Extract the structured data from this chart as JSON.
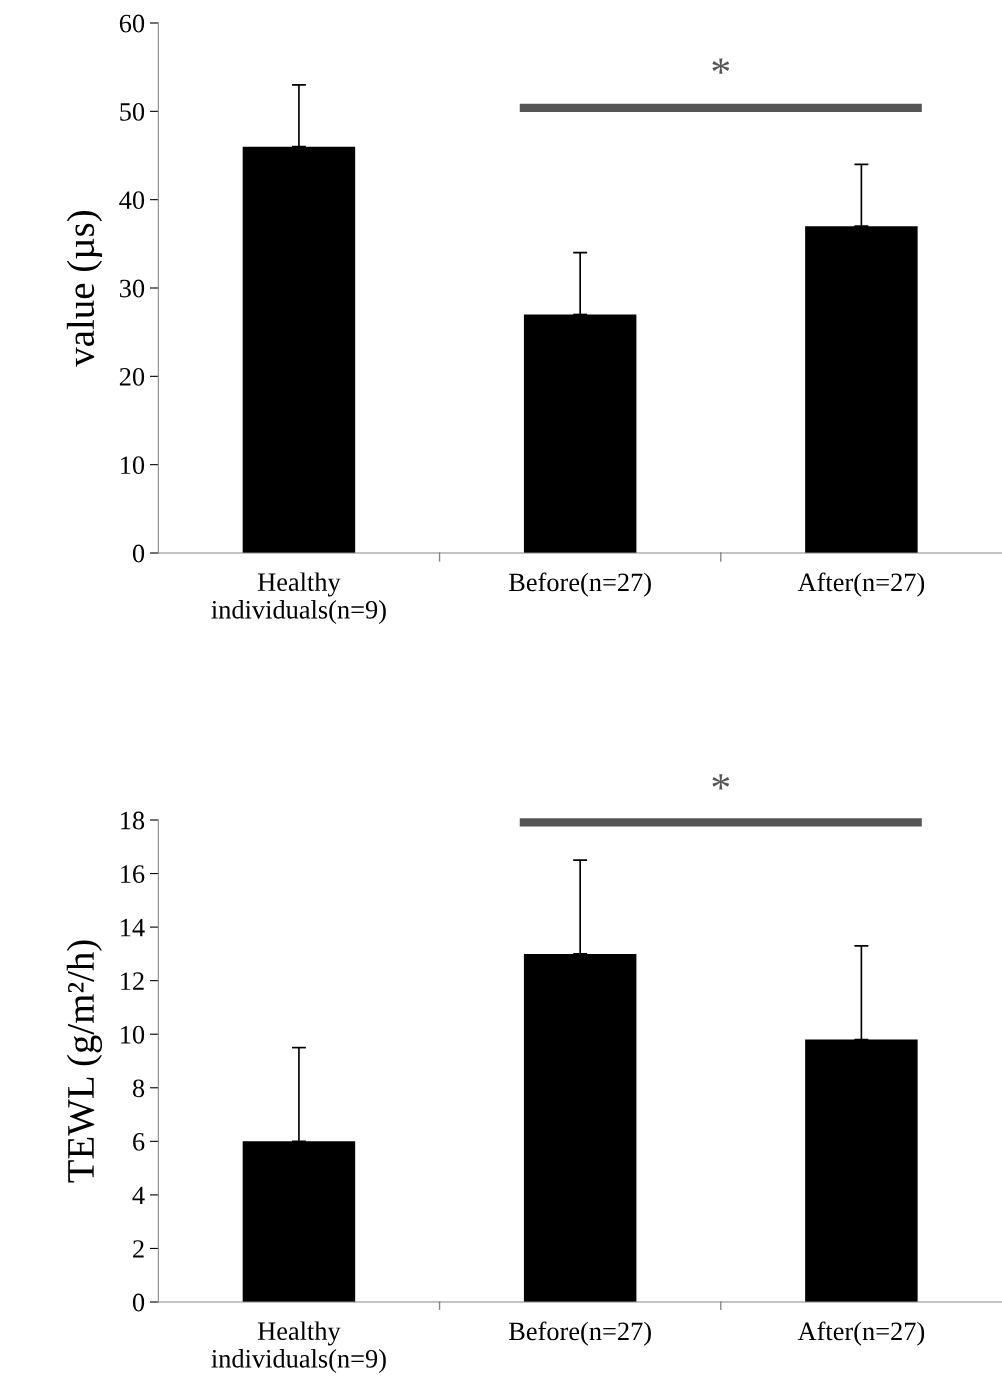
{
  "chart_data": [
    {
      "type": "bar",
      "ylabel": "value (µs)",
      "categories": [
        "Healthy\nindividuals(n=9)",
        "Before(n=27)",
        "After(n=27)"
      ],
      "values": [
        46,
        27,
        37
      ],
      "color": "#000000",
      "errors": [
        [
          46,
          53
        ],
        [
          27,
          34
        ],
        [
          37,
          44
        ]
      ],
      "ylim": [
        0,
        60
      ],
      "yticks": [
        0,
        10,
        20,
        30,
        40,
        50,
        60
      ],
      "grid": false,
      "legend": false,
      "annotations": [
        "*"
      ]
    },
    {
      "type": "bar",
      "ylabel": "TEWL (g/m²/h)",
      "categories": [
        "Healthy\nindividuals(n=9)",
        "Before(n=27)",
        "After(n=27)"
      ],
      "values": [
        6,
        13,
        9.8
      ],
      "color": "#000000",
      "errors": [
        [
          6,
          9.5
        ],
        [
          13,
          16.5
        ],
        [
          9.8,
          13.3
        ]
      ],
      "ylim": [
        0,
        18
      ],
      "yticks": [
        0,
        2,
        4,
        6,
        8,
        10,
        12,
        14,
        16,
        18
      ],
      "grid": false,
      "legend": false,
      "annotations": [
        "*"
      ]
    }
  ]
}
